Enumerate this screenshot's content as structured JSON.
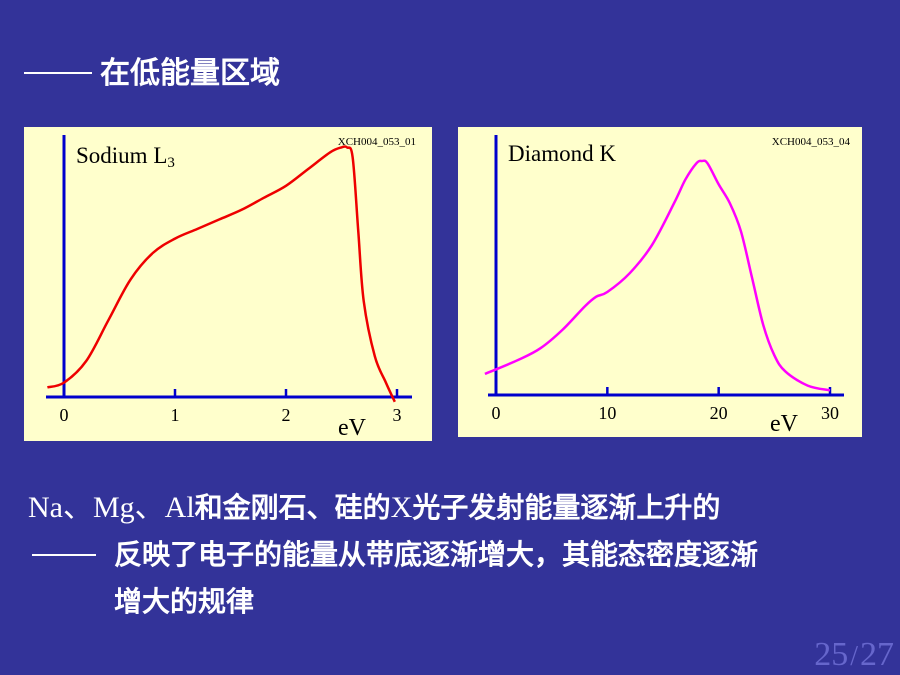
{
  "slide": {
    "heading_dash": "——",
    "heading": "在低能量区域",
    "description": {
      "line1_latin_1": "Na、Mg、Al",
      "line1_text": "和金刚石、硅的",
      "line1_latin_2": "X",
      "line1_text_2": "光子发射能量逐渐上升的",
      "line2_dash": "——",
      "line2": "反映了电子的能量从带底逐渐增大，其能态密度逐渐",
      "line3": "增大的规律"
    },
    "page_current": "25",
    "page_sep": "/",
    "page_total": "27"
  },
  "chart_data": [
    {
      "type": "line",
      "title": "Sodium L",
      "title_subscript": "3",
      "code": "XCH004_053_01",
      "xlabel": "eV",
      "ylabel": "",
      "xlim": [
        -0.15,
        3.1
      ],
      "ylim": [
        -0.03,
        1.05
      ],
      "x_ticks": [
        0,
        1,
        2,
        3
      ],
      "grid": false,
      "line_color": "#ee0000",
      "series": [
        {
          "x": [
            -0.15,
            0,
            0.2,
            0.4,
            0.6,
            0.8,
            1.0,
            1.2,
            1.4,
            1.6,
            1.8,
            2.0,
            2.2,
            2.4,
            2.5,
            2.55,
            2.6,
            2.65,
            2.7,
            2.8,
            2.9,
            2.98
          ],
          "y": [
            0.04,
            0.06,
            0.15,
            0.32,
            0.49,
            0.6,
            0.66,
            0.7,
            0.74,
            0.78,
            0.83,
            0.88,
            0.95,
            1.02,
            1.04,
            1.04,
            1.0,
            0.7,
            0.4,
            0.17,
            0.06,
            -0.02
          ]
        }
      ]
    },
    {
      "type": "line",
      "title": "Diamond K",
      "code": "XCH004_053_04",
      "xlabel": "eV",
      "ylabel": "",
      "xlim": [
        -1,
        31
      ],
      "ylim": [
        -0.03,
        1.05
      ],
      "x_ticks": [
        0,
        10,
        20,
        30
      ],
      "grid": false,
      "line_color": "#ff00ff",
      "series": [
        {
          "x": [
            -1,
            2,
            4,
            6,
            8,
            9,
            10,
            12,
            14,
            16,
            17,
            18,
            18.5,
            19,
            20,
            21,
            22,
            23,
            24,
            25,
            26,
            28,
            30
          ],
          "y": [
            0.09,
            0.15,
            0.2,
            0.28,
            0.38,
            0.42,
            0.44,
            0.52,
            0.64,
            0.82,
            0.92,
            0.99,
            1.0,
            0.99,
            0.9,
            0.82,
            0.7,
            0.5,
            0.3,
            0.17,
            0.1,
            0.04,
            0.02
          ]
        }
      ]
    }
  ]
}
